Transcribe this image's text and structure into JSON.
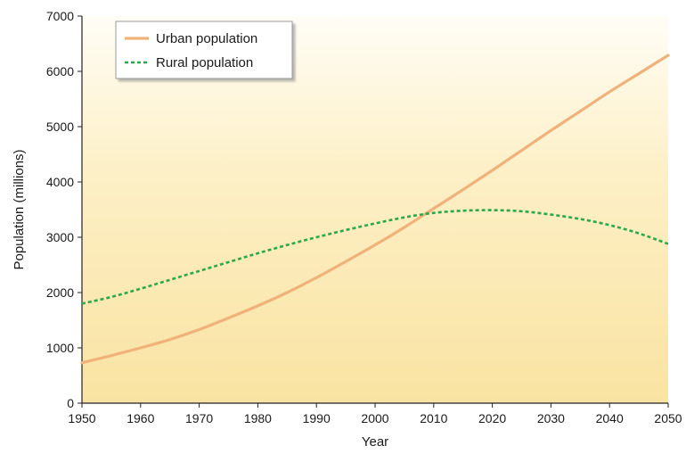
{
  "chart_data": {
    "type": "line",
    "title": "",
    "xlabel": "Year",
    "ylabel": "Population (millions)",
    "x": [
      1950,
      1955,
      1960,
      1965,
      1970,
      1975,
      1980,
      1985,
      1990,
      1995,
      2000,
      2005,
      2010,
      2015,
      2020,
      2025,
      2030,
      2035,
      2040,
      2045,
      2050
    ],
    "xlim": [
      1950,
      2050
    ],
    "ylim": [
      0,
      7000
    ],
    "x_ticks": [
      "1950",
      "1960",
      "1970",
      "1980",
      "1990",
      "2000",
      "2010",
      "2020",
      "2030",
      "2040",
      "2050"
    ],
    "y_ticks": [
      "0",
      "1000",
      "2000",
      "3000",
      "4000",
      "5000",
      "6000",
      "7000"
    ],
    "grid": false,
    "legend_position": "top-left",
    "series": [
      {
        "name": "Urban population",
        "color": "#f0b27a",
        "style": "solid",
        "values": [
          730,
          860,
          1000,
          1150,
          1330,
          1540,
          1760,
          2000,
          2270,
          2560,
          2860,
          3180,
          3520,
          3860,
          4210,
          4570,
          4930,
          5280,
          5630,
          5960,
          6290
        ]
      },
      {
        "name": "Rural population",
        "color": "#2aa84a",
        "style": "dotted",
        "values": [
          1800,
          1920,
          2070,
          2230,
          2390,
          2550,
          2710,
          2860,
          3000,
          3130,
          3250,
          3360,
          3440,
          3480,
          3490,
          3470,
          3410,
          3330,
          3220,
          3070,
          2880
        ]
      }
    ]
  }
}
